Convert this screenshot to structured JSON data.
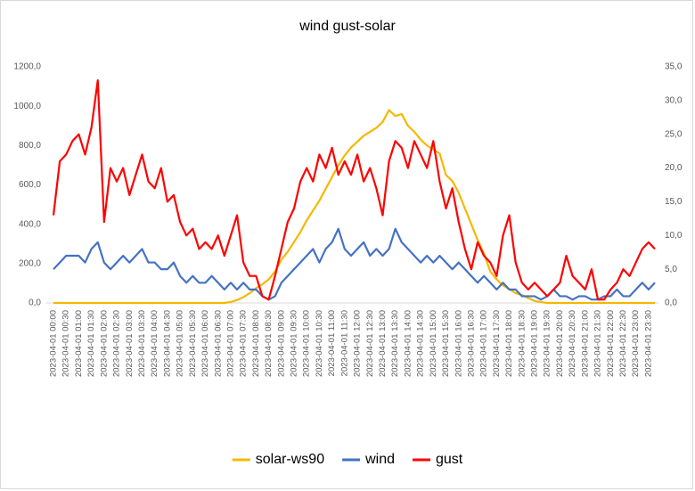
{
  "chart_data": {
    "type": "line",
    "title": "wind gust-solar",
    "categories": [
      "2023-04-01 00:00",
      null,
      "2023-04-01 00:30",
      null,
      "2023-04-01 01:00",
      null,
      "2023-04-01 01:30",
      null,
      "2023-04-01 02:00",
      null,
      "2023-04-01 02:30",
      null,
      "2023-04-01 03:00",
      null,
      "2023-04-01 03:30",
      null,
      "2023-04-01 04:00",
      null,
      "2023-04-01 04:30",
      null,
      "2023-04-01 05:00",
      null,
      "2023-04-01 05:30",
      null,
      "2023-04-01 06:00",
      null,
      "2023-04-01 06:30",
      null,
      "2023-04-01 07:00",
      null,
      "2023-04-01 07:30",
      null,
      "2023-04-01 08:00",
      null,
      "2023-04-01 08:30",
      null,
      "2023-04-01 09:00",
      null,
      "2023-04-01 09:30",
      null,
      "2023-04-01 10:00",
      null,
      "2023-04-01 10:30",
      null,
      "2023-04-01 11:00",
      null,
      "2023-04-01 11:30",
      null,
      "2023-04-01 12:00",
      null,
      "2023-04-01 12:30",
      null,
      "2023-04-01 13:00",
      null,
      "2023-04-01 13:30",
      null,
      "2023-04-01 14:00",
      null,
      "2023-04-01 14:30",
      null,
      "2023-04-01 15:00",
      null,
      "2023-04-01 15:30",
      null,
      "2023-04-01 16:00",
      null,
      "2023-04-01 16:30",
      null,
      "2023-04-01 17:00",
      null,
      "2023-04-01 17:30",
      null,
      "2023-04-01 18:00",
      null,
      "2023-04-01 18:30",
      null,
      "2023-04-01 19:00",
      null,
      "2023-04-01 19:30",
      null,
      "2023-04-01 20:00",
      null,
      "2023-04-01 20:30",
      null,
      "2023-04-01 21:00",
      null,
      "2023-04-01 21:30",
      null,
      "2023-04-01 22:00",
      null,
      "2023-04-01 22:30",
      null,
      "2023-04-01 23:00",
      null,
      "2023-04-01 23:30",
      null
    ],
    "series": [
      {
        "name": "solar-ws90",
        "color": "#f5b800",
        "axis": "y",
        "values": [
          0,
          0,
          0,
          0,
          0,
          0,
          0,
          0,
          0,
          0,
          0,
          0,
          0,
          0,
          0,
          0,
          0,
          0,
          0,
          0,
          0,
          0,
          0,
          0,
          0,
          0,
          0,
          0,
          5,
          15,
          30,
          50,
          75,
          95,
          120,
          160,
          220,
          260,
          310,
          360,
          420,
          470,
          520,
          580,
          640,
          700,
          750,
          790,
          820,
          850,
          870,
          890,
          920,
          980,
          950,
          960,
          900,
          870,
          830,
          800,
          780,
          760,
          650,
          620,
          560,
          480,
          400,
          320,
          250,
          160,
          120,
          90,
          70,
          50,
          40,
          25,
          10,
          5,
          0,
          0,
          0,
          0,
          0,
          0,
          0,
          0,
          0,
          0,
          0,
          0,
          0,
          0,
          0,
          0,
          0,
          0
        ]
      },
      {
        "name": "wind",
        "color": "#4472c4",
        "axis": "y2",
        "values": [
          5,
          6,
          7,
          7,
          7,
          6,
          8,
          9,
          6,
          5,
          6,
          7,
          6,
          7,
          8,
          6,
          6,
          5,
          5,
          6,
          4,
          3,
          4,
          3,
          3,
          4,
          3,
          2,
          3,
          2,
          3,
          2,
          2,
          1,
          0.5,
          1,
          3,
          4,
          5,
          6,
          7,
          8,
          6,
          8,
          9,
          11,
          8,
          7,
          8,
          9,
          7,
          8,
          7,
          8,
          11,
          9,
          8,
          7,
          6,
          7,
          6,
          7,
          6,
          5,
          6,
          5,
          4,
          3,
          4,
          3,
          2,
          3,
          2,
          2,
          1,
          1,
          1,
          0.5,
          1,
          2,
          1,
          1,
          0.5,
          1,
          1,
          0.5,
          0.5,
          1,
          1,
          2,
          1,
          1,
          2,
          3,
          2,
          3
        ]
      },
      {
        "name": "gust",
        "color": "#ff0000",
        "axis": "y2",
        "values": [
          13,
          21,
          22,
          24,
          25,
          22,
          26,
          33,
          12,
          20,
          18,
          20,
          16,
          19,
          22,
          18,
          17,
          20,
          15,
          16,
          12,
          10,
          11,
          8,
          9,
          8,
          10,
          7,
          10,
          13,
          6,
          4,
          4,
          1,
          0.5,
          4,
          8,
          12,
          14,
          18,
          20,
          18,
          22,
          20,
          23,
          19,
          21,
          19,
          22,
          18,
          20,
          17,
          13,
          21,
          24,
          23,
          20,
          24,
          22,
          20,
          24,
          18,
          14,
          17,
          12,
          8,
          5,
          9,
          7,
          6,
          4,
          10,
          13,
          6,
          3,
          2,
          3,
          2,
          1,
          2,
          3,
          7,
          4,
          3,
          2,
          5,
          0.5,
          0.5,
          2,
          3,
          5,
          4,
          6,
          8,
          9,
          8
        ]
      }
    ],
    "ylim": [
      0,
      1200
    ],
    "yticks": [
      {
        "value": 0,
        "label": "0,0"
      },
      {
        "value": 200,
        "label": "200,0"
      },
      {
        "value": 400,
        "label": "400,0"
      },
      {
        "value": 600,
        "label": "600,0"
      },
      {
        "value": 800,
        "label": "800,0"
      },
      {
        "value": 1000,
        "label": "1000,0"
      },
      {
        "value": 1200,
        "label": "1200,0"
      }
    ],
    "y2lim": [
      0,
      35
    ],
    "y2ticks": [
      {
        "value": 0,
        "label": "0,0"
      },
      {
        "value": 5,
        "label": "5,0"
      },
      {
        "value": 10,
        "label": "10,0"
      },
      {
        "value": 15,
        "label": "15,0"
      },
      {
        "value": 20,
        "label": "20,0"
      },
      {
        "value": 25,
        "label": "25,0"
      },
      {
        "value": 30,
        "label": "30,0"
      },
      {
        "value": 35,
        "label": "35,0"
      }
    ],
    "grid": false,
    "legend": "bottom"
  }
}
